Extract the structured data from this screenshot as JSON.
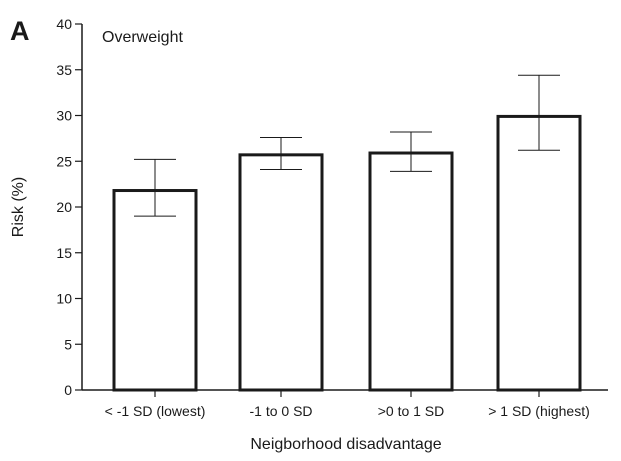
{
  "chart_data": {
    "type": "bar",
    "panel_label": "A",
    "title": "Overweight",
    "xlabel": "Neigborhood disadvantage",
    "ylabel": "Risk (%)",
    "ylim": [
      0,
      40
    ],
    "yticks": [
      0,
      5,
      10,
      15,
      20,
      25,
      30,
      35,
      40
    ],
    "grid": false,
    "error_bars": true,
    "categories": [
      "< -1 SD (lowest)",
      "-1 to 0 SD",
      ">0 to 1 SD",
      "> 1 SD (highest)"
    ],
    "values": [
      21.8,
      25.7,
      25.9,
      29.9
    ],
    "error_low": [
      19.0,
      24.1,
      23.9,
      26.2
    ],
    "error_high": [
      25.2,
      27.6,
      28.2,
      34.4
    ]
  }
}
